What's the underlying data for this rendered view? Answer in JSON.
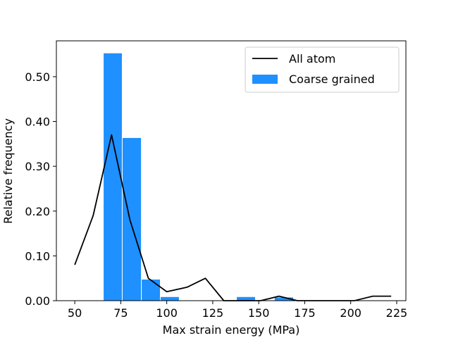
{
  "chart_data": {
    "type": "bar",
    "xlabel": "Max strain energy (MPa)",
    "ylabel": "Relative frequency",
    "xlim": [
      40,
      230
    ],
    "ylim": [
      0,
      0.58
    ],
    "x_ticks": [
      50,
      75,
      100,
      125,
      150,
      175,
      200,
      225
    ],
    "y_ticks": [
      0.0,
      0.1,
      0.2,
      0.3,
      0.4,
      0.5
    ],
    "y_tick_labels": [
      "0.00",
      "0.10",
      "0.20",
      "0.30",
      "0.40",
      "0.50"
    ],
    "grid": false,
    "legend_position": "top-right",
    "series": [
      {
        "name": "All atom",
        "kind": "line",
        "color": "#000000",
        "x": [
          50,
          60,
          70,
          80,
          90,
          100,
          111,
          121,
          131,
          141,
          151,
          161,
          171,
          181,
          192,
          202,
          212,
          222
        ],
        "values": [
          0.08,
          0.19,
          0.37,
          0.18,
          0.05,
          0.02,
          0.03,
          0.05,
          0.0,
          0.0,
          0.0,
          0.01,
          0.0,
          0.0,
          0.0,
          0.0,
          0.01,
          0.01
        ]
      },
      {
        "name": "Coarse grained",
        "kind": "bar",
        "color": "#1e90ff",
        "bins": [
          [
            65.5,
            75.8,
            0.553
          ],
          [
            75.8,
            86.2,
            0.364
          ],
          [
            86.2,
            96.5,
            0.048
          ],
          [
            96.5,
            106.8,
            0.009
          ],
          [
            106.8,
            117.2,
            0.0
          ],
          [
            117.2,
            127.5,
            0.0
          ],
          [
            127.5,
            137.9,
            0.0
          ],
          [
            137.9,
            148.2,
            0.009
          ],
          [
            148.2,
            158.5,
            0.0
          ],
          [
            158.5,
            168.9,
            0.008
          ]
        ]
      }
    ]
  }
}
